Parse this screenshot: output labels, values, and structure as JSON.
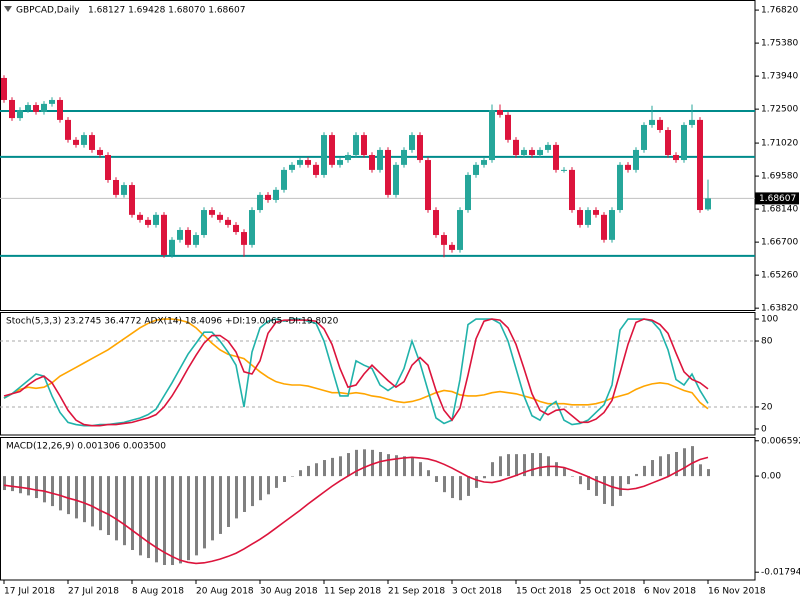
{
  "chart_data": [
    {
      "type": "candlestick",
      "title": "GBPCAD,Daily",
      "subtitle": "1.68127 1.69428 1.68070 1.68607",
      "open": [
        1.7386,
        1.729,
        1.7211,
        1.7246,
        1.7268,
        1.7238,
        1.7273,
        1.729,
        1.7203,
        1.7116,
        1.7094,
        1.7137,
        1.7072,
        1.705,
        1.6941,
        1.6876,
        1.6919,
        1.6789,
        1.6767,
        1.6745,
        1.6789,
        1.6614,
        1.668,
        1.6723,
        1.6658,
        1.6701,
        1.681,
        1.6789,
        1.6767,
        1.6745,
        1.6714,
        1.6658,
        1.681,
        1.6876,
        1.6854,
        1.6898,
        1.6985,
        1.7007,
        1.7028,
        1.7007,
        1.6963,
        1.7137,
        1.7007,
        1.7028,
        1.705,
        1.7137,
        1.705,
        1.6985,
        1.7072,
        1.6876,
        1.7007,
        1.7072,
        1.7137,
        1.7028,
        1.681,
        1.6701,
        1.6658,
        1.6636,
        1.681,
        1.6963,
        1.7007,
        1.7028,
        1.7246,
        1.7225,
        1.7116,
        1.705,
        1.7072,
        1.705,
        1.7072,
        1.7094,
        1.6985,
        1.6985,
        1.681,
        1.6745,
        1.681,
        1.6789,
        1.668,
        1.681,
        1.7007,
        1.6985,
        1.7072,
        1.7181,
        1.7203,
        1.7159,
        1.705,
        1.7028,
        1.7181,
        1.7203,
        1.68127
      ],
      "high": [
        1.7398,
        1.7302,
        1.7258,
        1.728,
        1.728,
        1.7285,
        1.7302,
        1.7302,
        1.7215,
        1.7128,
        1.7149,
        1.7149,
        1.7084,
        1.7062,
        1.6953,
        1.6931,
        1.6931,
        1.6801,
        1.6779,
        1.6801,
        1.6801,
        1.6692,
        1.6735,
        1.6735,
        1.6713,
        1.6822,
        1.6822,
        1.6801,
        1.6779,
        1.6757,
        1.6726,
        1.6822,
        1.6888,
        1.6888,
        1.691,
        1.6997,
        1.7019,
        1.704,
        1.704,
        1.7019,
        1.7149,
        1.7149,
        1.704,
        1.7062,
        1.7149,
        1.7149,
        1.7062,
        1.7084,
        1.7084,
        1.7019,
        1.7084,
        1.7149,
        1.7149,
        1.704,
        1.6822,
        1.6713,
        1.667,
        1.6822,
        1.6975,
        1.7019,
        1.704,
        1.727,
        1.727,
        1.7237,
        1.7128,
        1.7084,
        1.7084,
        1.7084,
        1.7106,
        1.7106,
        1.6997,
        1.6997,
        1.6822,
        1.6822,
        1.6822,
        1.6801,
        1.6822,
        1.7019,
        1.7019,
        1.7084,
        1.7193,
        1.7265,
        1.7215,
        1.7171,
        1.7062,
        1.7193,
        1.727,
        1.7215,
        1.69428
      ],
      "low": [
        1.7278,
        1.7199,
        1.7199,
        1.7234,
        1.7226,
        1.7226,
        1.7261,
        1.7191,
        1.7104,
        1.7082,
        1.7082,
        1.706,
        1.7038,
        1.6929,
        1.6864,
        1.6864,
        1.6777,
        1.6755,
        1.6733,
        1.6733,
        1.6602,
        1.6602,
        1.6668,
        1.6646,
        1.6646,
        1.6689,
        1.6777,
        1.6755,
        1.6733,
        1.6702,
        1.6606,
        1.6646,
        1.6798,
        1.6842,
        1.6842,
        1.6886,
        1.6973,
        1.6995,
        1.6995,
        1.6951,
        1.6951,
        1.6995,
        1.6995,
        1.7016,
        1.7038,
        1.7038,
        1.6973,
        1.6973,
        1.6864,
        1.6864,
        1.6995,
        1.706,
        1.7016,
        1.6798,
        1.6689,
        1.6604,
        1.6624,
        1.6624,
        1.6798,
        1.6951,
        1.6995,
        1.7016,
        1.7213,
        1.7104,
        1.7038,
        1.7038,
        1.7038,
        1.7038,
        1.706,
        1.6973,
        1.6973,
        1.6798,
        1.6733,
        1.6733,
        1.6777,
        1.6668,
        1.6668,
        1.6798,
        1.6973,
        1.6973,
        1.706,
        1.7169,
        1.7147,
        1.7038,
        1.7016,
        1.7016,
        1.7169,
        1.6798,
        1.6807
      ],
      "close": [
        1.729,
        1.7211,
        1.7246,
        1.7268,
        1.7238,
        1.7273,
        1.729,
        1.7203,
        1.7116,
        1.7094,
        1.7137,
        1.7072,
        1.705,
        1.6941,
        1.6876,
        1.6919,
        1.6789,
        1.6767,
        1.6745,
        1.6789,
        1.6614,
        1.668,
        1.6723,
        1.6658,
        1.6701,
        1.681,
        1.6789,
        1.6767,
        1.6745,
        1.6714,
        1.6658,
        1.681,
        1.6876,
        1.6854,
        1.6898,
        1.6985,
        1.7007,
        1.7028,
        1.7007,
        1.6963,
        1.7137,
        1.7007,
        1.7028,
        1.705,
        1.7137,
        1.705,
        1.6985,
        1.7072,
        1.6876,
        1.7007,
        1.7072,
        1.7137,
        1.7028,
        1.681,
        1.6701,
        1.6658,
        1.6636,
        1.681,
        1.6963,
        1.7007,
        1.7028,
        1.7246,
        1.7225,
        1.7116,
        1.705,
        1.7072,
        1.705,
        1.7072,
        1.7094,
        1.6985,
        1.6985,
        1.681,
        1.6745,
        1.681,
        1.6789,
        1.668,
        1.681,
        1.7007,
        1.6985,
        1.7072,
        1.7181,
        1.7203,
        1.7159,
        1.705,
        1.7028,
        1.7181,
        1.7203,
        1.681,
        1.68607
      ],
      "up_color": "#26a69a",
      "down_color": "#dc143c",
      "ylim": [
        1.6374,
        1.7726
      ],
      "yticks": [
        {
          "value": 1.7682,
          "label": "1.76820"
        },
        {
          "value": 1.7538,
          "label": "1.75380"
        },
        {
          "value": 1.7394,
          "label": "1.73940"
        },
        {
          "value": 1.725,
          "label": "1.72500"
        },
        {
          "value": 1.7102,
          "label": "1.71020"
        },
        {
          "value": 1.6958,
          "label": "1.69580"
        },
        {
          "value": 1.6814,
          "label": "1.68140"
        },
        {
          "value": 1.667,
          "label": "1.66700"
        },
        {
          "value": 1.6526,
          "label": "1.65260"
        },
        {
          "value": 1.6382,
          "label": "1.63820"
        }
      ],
      "levels": [
        1.7242,
        1.7042,
        1.661
      ],
      "level_color": "#008b8b",
      "last_price": 1.68607
    },
    {
      "type": "line",
      "title": "Stoch(5,3,3) 23.2745 36.4772  ADX(14) 18.4096 +DI:19.0065 -DI:19.8020",
      "series": [
        {
          "color": "#20b2aa",
          "values": [
            28,
            32,
            38,
            44,
            50,
            48,
            30,
            15,
            6,
            4,
            3,
            3,
            4,
            4,
            5,
            6,
            8,
            10,
            13,
            18,
            30,
            42,
            55,
            68,
            78,
            88,
            88,
            80,
            70,
            58,
            20,
            70,
            92,
            98,
            100,
            98,
            100,
            100,
            98,
            96,
            80,
            55,
            30,
            30,
            62,
            58,
            55,
            40,
            35,
            40,
            55,
            80,
            60,
            35,
            10,
            5,
            8,
            45,
            95,
            100,
            100,
            100,
            96,
            80,
            55,
            30,
            12,
            8,
            20,
            25,
            8,
            4,
            5,
            8,
            15,
            22,
            40,
            90,
            100,
            100,
            100,
            98,
            90,
            72,
            45,
            40,
            50,
            35,
            23.2745
          ]
        },
        {
          "color": "#dc143c",
          "values": [
            30,
            32,
            34,
            40,
            45,
            48,
            42,
            30,
            17,
            8,
            4,
            3,
            3,
            4,
            4,
            5,
            6,
            8,
            10,
            13,
            20,
            30,
            42,
            55,
            67,
            78,
            85,
            85,
            80,
            70,
            52,
            50,
            62,
            87,
            97,
            99,
            99,
            99,
            99,
            98,
            91,
            77,
            55,
            38,
            40,
            50,
            58,
            51,
            44,
            38,
            43,
            58,
            65,
            58,
            35,
            17,
            8,
            19,
            49,
            82,
            98,
            100,
            99,
            92,
            77,
            55,
            32,
            17,
            13,
            17,
            18,
            12,
            6,
            6,
            9,
            15,
            26,
            51,
            77,
            97,
            100,
            99,
            95,
            87,
            69,
            52,
            45,
            42,
            36.4772
          ]
        },
        {
          "color": "#ffa500",
          "values": [
            28,
            32,
            36,
            38,
            37,
            38,
            42,
            48,
            52,
            56,
            60,
            64,
            68,
            72,
            77,
            82,
            87,
            92,
            96,
            99,
            100,
            100,
            99,
            97,
            92,
            85,
            78,
            72,
            68,
            66,
            64,
            58,
            52,
            47,
            43,
            41,
            40,
            40,
            39,
            37,
            35,
            33,
            33,
            32,
            33,
            32,
            30,
            29,
            27,
            25,
            24,
            25,
            27,
            30,
            33,
            35,
            34,
            31,
            30,
            30,
            31,
            33,
            34,
            33,
            32,
            30,
            28,
            25,
            23,
            23,
            23,
            22,
            22,
            22,
            23,
            25,
            28,
            30,
            32,
            36,
            39,
            41,
            42,
            41,
            38,
            35,
            33,
            24,
            18.4096
          ]
        }
      ],
      "ylim": [
        -5.5,
        106.4
      ],
      "yticks": [
        100,
        80,
        20,
        0
      ],
      "levels": [
        80,
        20
      ]
    },
    {
      "type": "macd",
      "title": "MACD(12,26,9) 0.001306 0.003500",
      "categories": [
        "17 Jul 2018",
        null,
        null,
        null,
        null,
        null,
        null,
        null,
        "27 Jul 2018",
        null,
        null,
        null,
        null,
        null,
        null,
        null,
        "8 Aug 2018",
        null,
        null,
        null,
        null,
        null,
        null,
        null,
        "20 Aug 2018",
        null,
        null,
        null,
        null,
        null,
        null,
        null,
        "30 Aug 2018",
        null,
        null,
        null,
        null,
        null,
        null,
        null,
        "11 Sep 2018",
        null,
        null,
        null,
        null,
        null,
        null,
        null,
        "21 Sep 2018",
        null,
        null,
        null,
        null,
        null,
        null,
        null,
        "3 Oct 2018",
        null,
        null,
        null,
        null,
        null,
        null,
        null,
        "15 Oct 2018",
        null,
        null,
        null,
        null,
        null,
        null,
        null,
        "25 Oct 2018",
        null,
        null,
        null,
        null,
        null,
        null,
        null,
        "6 Nov 2018",
        null,
        null,
        null,
        null,
        null,
        null,
        null,
        "16 Nov 2018"
      ],
      "histogram": {
        "color": "#808080",
        "values": [
          -0.0026,
          -0.0028,
          -0.0032,
          -0.0036,
          -0.0041,
          -0.0049,
          -0.0056,
          -0.0064,
          -0.0071,
          -0.0079,
          -0.0086,
          -0.0094,
          -0.0101,
          -0.011,
          -0.012,
          -0.0129,
          -0.0138,
          -0.0148,
          -0.0153,
          -0.0161,
          -0.0166,
          -0.0166,
          -0.0163,
          -0.0157,
          -0.0148,
          -0.0135,
          -0.012,
          -0.0108,
          -0.0095,
          -0.0079,
          -0.0067,
          -0.0056,
          -0.0045,
          -0.0034,
          -0.0022,
          -0.0011,
          0,
          0.0011,
          0.0019,
          0.0024,
          0.003,
          0.0034,
          0.0037,
          0.0043,
          0.0049,
          0.005,
          0.0049,
          0.0045,
          0.0041,
          0.0039,
          0.0037,
          0.0034,
          0.0026,
          0.0011,
          -0.0011,
          -0.003,
          -0.0041,
          -0.0045,
          -0.0037,
          -0.0022,
          -0.0004,
          0.0026,
          0.0037,
          0.0041,
          0.0041,
          0.0041,
          0.0043,
          0.0043,
          0.0037,
          0.0026,
          0.0015,
          0,
          -0.0015,
          -0.0026,
          -0.0037,
          -0.0052,
          -0.0056,
          -0.0037,
          -0.0015,
          0.0004,
          0.0019,
          0.003,
          0.0037,
          0.0041,
          0.0045,
          0.0052,
          0.0056,
          0.0022,
          0.001306
        ]
      },
      "series": [
        {
          "color": "#dc143c",
          "values": [
            -0.0017,
            -0.0019,
            -0.0021,
            -0.0023,
            -0.0026,
            -0.0028,
            -0.0032,
            -0.0036,
            -0.0041,
            -0.0045,
            -0.005,
            -0.0056,
            -0.0064,
            -0.0071,
            -0.008,
            -0.009,
            -0.0101,
            -0.0112,
            -0.0123,
            -0.0133,
            -0.0142,
            -0.015,
            -0.0157,
            -0.0161,
            -0.0163,
            -0.0162,
            -0.0159,
            -0.0155,
            -0.015,
            -0.0144,
            -0.0136,
            -0.0127,
            -0.0118,
            -0.0108,
            -0.0097,
            -0.0086,
            -0.0075,
            -0.0064,
            -0.0052,
            -0.0041,
            -0.003,
            -0.0019,
            -0.0009,
            0,
            0.0009,
            0.0016,
            0.0022,
            0.0027,
            0.003,
            0.0032,
            0.0034,
            0.0035,
            0.0034,
            0.0032,
            0.0028,
            0.0022,
            0.0015,
            0.0007,
            -0.0001,
            -0.0007,
            -0.0011,
            -0.0012,
            -0.0009,
            -0.0004,
            0.0001,
            0.0007,
            0.0012,
            0.0016,
            0.0018,
            0.0018,
            0.0016,
            0.0011,
            0.0005,
            -0.0001,
            -0.0008,
            -0.0014,
            -0.002,
            -0.0024,
            -0.0025,
            -0.0023,
            -0.0019,
            -0.0013,
            -0.0007,
            -0.0001,
            0.0007,
            0.0015,
            0.0024,
            0.0031,
            0.0035
          ]
        }
      ],
      "ylim": [
        -0.0194,
        0.0073
      ],
      "yticks": [
        0.006592,
        {
          "value": 0,
          "label": "0.00"
        },
        -0.017944
      ]
    }
  ]
}
